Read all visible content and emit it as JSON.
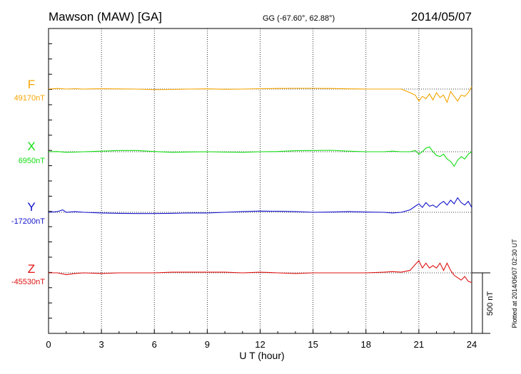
{
  "header": {
    "station": "Mawson (MAW)  [GA]",
    "coords": "GG (-67.60°,  62.88°)",
    "date": "2014/05/07"
  },
  "side_note": "Plotted at 2014/06/07 02:30 UT",
  "scale_bar_label": "500 nT",
  "chart_data": {
    "type": "line",
    "xlabel": "U T (hour)",
    "xlim": [
      0,
      24
    ],
    "xticks": [
      "0",
      "3",
      "6",
      "9",
      "12",
      "15",
      "18",
      "21",
      "24"
    ],
    "grid": "dotted vertical lines every 3 hours",
    "scale_nT": 500,
    "series": [
      {
        "name": "F",
        "baseline_label": "49170nT",
        "color": "#f5a400",
        "x": [
          0,
          0.5,
          1,
          1.5,
          2,
          3,
          4,
          5,
          6,
          7,
          8,
          9,
          10,
          11,
          12,
          13,
          14,
          15,
          16,
          17,
          18,
          19,
          19.5,
          20,
          20.5,
          20.8,
          21,
          21.2,
          21.4,
          21.6,
          21.8,
          22,
          22.2,
          22.4,
          22.6,
          22.8,
          23,
          23.2,
          23.4,
          23.6,
          23.8,
          24
        ],
        "values": [
          0,
          5,
          0,
          3,
          0,
          3,
          1,
          0,
          -5,
          -3,
          0,
          2,
          -2,
          0,
          3,
          5,
          6,
          6,
          5,
          2,
          0,
          0,
          0,
          0,
          -30,
          -50,
          -100,
          -60,
          -80,
          -40,
          -90,
          -30,
          -70,
          -50,
          -110,
          -20,
          -60,
          -100,
          -50,
          -60,
          -30,
          20
        ]
      },
      {
        "name": "X",
        "baseline_label": "6950nT",
        "color": "#11dd11",
        "x": [
          0,
          0.5,
          1,
          1.5,
          2,
          3,
          4,
          5,
          6,
          7,
          8,
          9,
          10,
          11,
          12,
          13,
          14,
          15,
          16,
          17,
          18,
          19,
          19.5,
          20,
          20.5,
          20.8,
          21,
          21.2,
          21.4,
          21.6,
          21.8,
          22,
          22.2,
          22.4,
          22.6,
          22.8,
          23,
          23.2,
          23.4,
          23.6,
          23.8,
          24
        ],
        "values": [
          0,
          2,
          -5,
          -3,
          0,
          5,
          10,
          10,
          2,
          -5,
          -2,
          0,
          -3,
          -5,
          0,
          2,
          8,
          10,
          12,
          5,
          0,
          0,
          5,
          0,
          0,
          10,
          -20,
          0,
          30,
          40,
          0,
          -30,
          -40,
          -20,
          -60,
          -80,
          -120,
          -70,
          -40,
          -60,
          -20,
          0
        ]
      },
      {
        "name": "Y",
        "baseline_label": "-17200nT",
        "color": "#1111cc",
        "x": [
          0,
          0.5,
          0.8,
          1,
          1.5,
          2,
          3,
          4,
          5,
          6,
          7,
          8,
          9,
          10,
          11,
          12,
          13,
          14,
          15,
          16,
          17,
          18,
          19,
          19.5,
          20,
          20.5,
          20.8,
          21,
          21.2,
          21.4,
          21.6,
          21.8,
          22,
          22.2,
          22.4,
          22.6,
          22.8,
          23,
          23.2,
          23.4,
          23.6,
          23.8,
          24
        ],
        "values": [
          0,
          5,
          20,
          0,
          5,
          0,
          -5,
          -8,
          -10,
          -10,
          -8,
          -5,
          -5,
          0,
          5,
          10,
          8,
          5,
          0,
          2,
          5,
          2,
          0,
          -5,
          0,
          20,
          50,
          70,
          40,
          80,
          50,
          60,
          40,
          70,
          90,
          60,
          100,
          70,
          120,
          80,
          60,
          90,
          40
        ]
      },
      {
        "name": "Z",
        "baseline_label": "-45530nT",
        "color": "#e01111",
        "x": [
          0,
          0.5,
          1,
          1.5,
          2,
          3,
          4,
          5,
          6,
          7,
          8,
          9,
          10,
          11,
          12,
          13,
          14,
          15,
          16,
          17,
          18,
          19,
          19.5,
          20,
          20.5,
          20.8,
          21,
          21.2,
          21.4,
          21.6,
          21.8,
          22,
          22.2,
          22.4,
          22.6,
          22.8,
          23,
          23.2,
          23.4,
          23.6,
          23.8,
          24
        ],
        "values": [
          0,
          0,
          -15,
          -5,
          0,
          -5,
          0,
          0,
          0,
          5,
          5,
          5,
          5,
          0,
          5,
          0,
          -5,
          0,
          0,
          0,
          0,
          5,
          10,
          5,
          20,
          70,
          100,
          40,
          80,
          40,
          60,
          40,
          80,
          20,
          80,
          20,
          -20,
          -40,
          -60,
          -30,
          -70,
          -80
        ]
      }
    ]
  }
}
